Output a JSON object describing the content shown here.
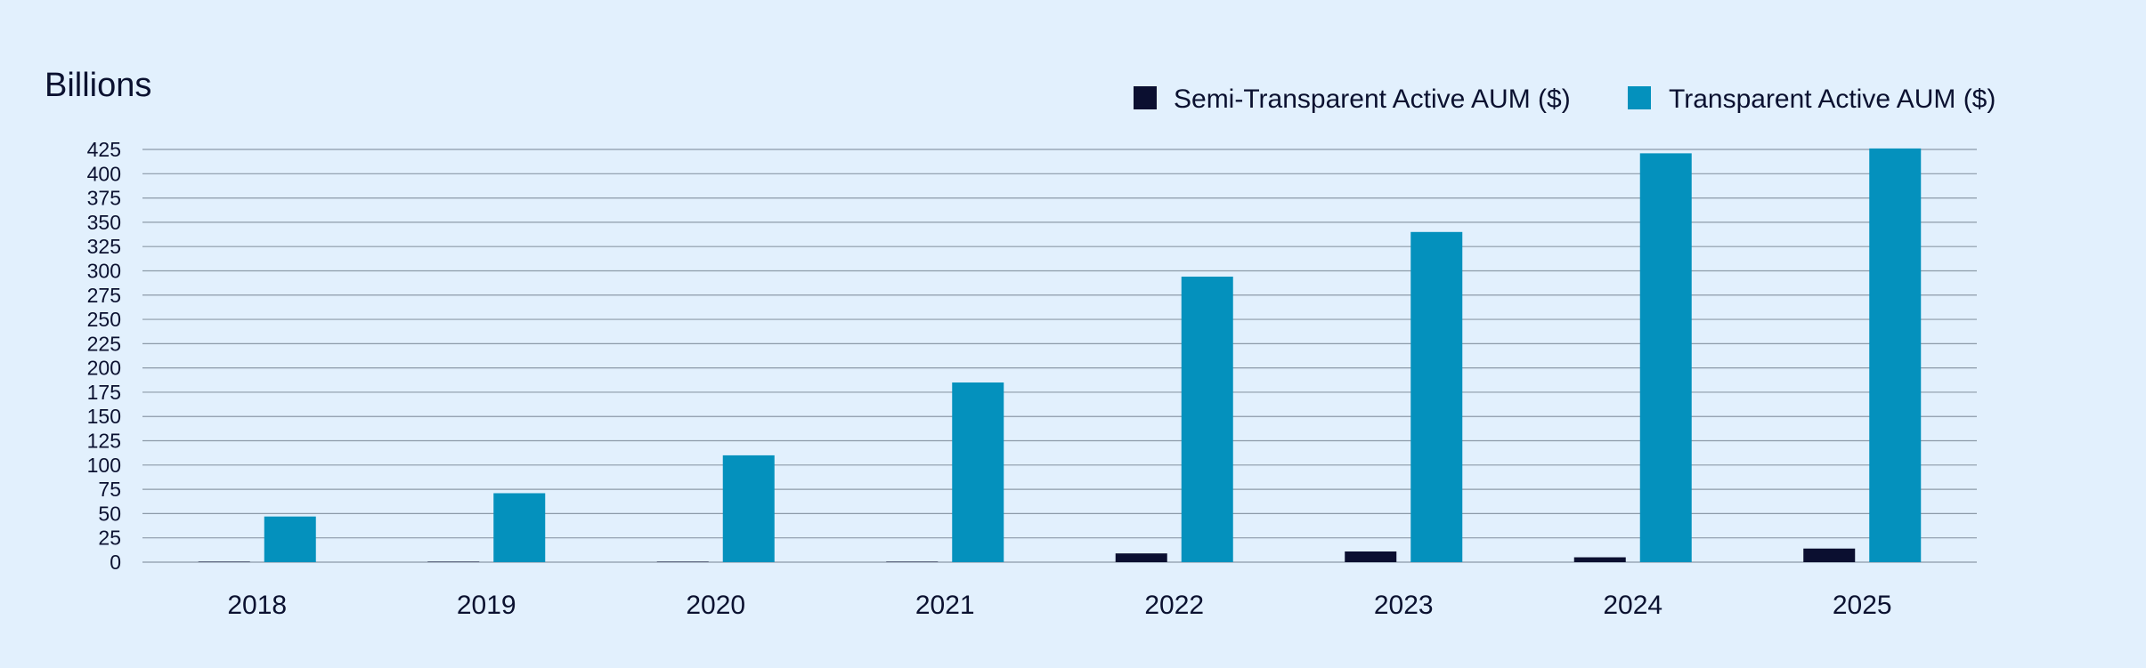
{
  "chart_data": {
    "type": "bar",
    "unit_label": "Billions",
    "categories": [
      "2018",
      "2019",
      "2020",
      "2021",
      "2022",
      "2023",
      "2024",
      "2025"
    ],
    "series": [
      {
        "name": "Semi-Transparent Active AUM ($)",
        "color": "#0b0f30",
        "values": [
          0.5,
          0.5,
          0.5,
          0.5,
          9,
          11,
          5,
          14
        ]
      },
      {
        "name": "Transparent Active AUM ($)",
        "color": "#0491bd",
        "values": [
          47,
          71,
          110,
          185,
          294,
          340,
          421,
          426
        ]
      }
    ],
    "ylim": [
      0,
      425
    ],
    "yticks": [
      0,
      25,
      50,
      75,
      100,
      125,
      150,
      175,
      200,
      225,
      250,
      275,
      300,
      325,
      350,
      375,
      400,
      425
    ],
    "grid": true,
    "legend_position": "top-right",
    "background": "#e2f0fd"
  }
}
